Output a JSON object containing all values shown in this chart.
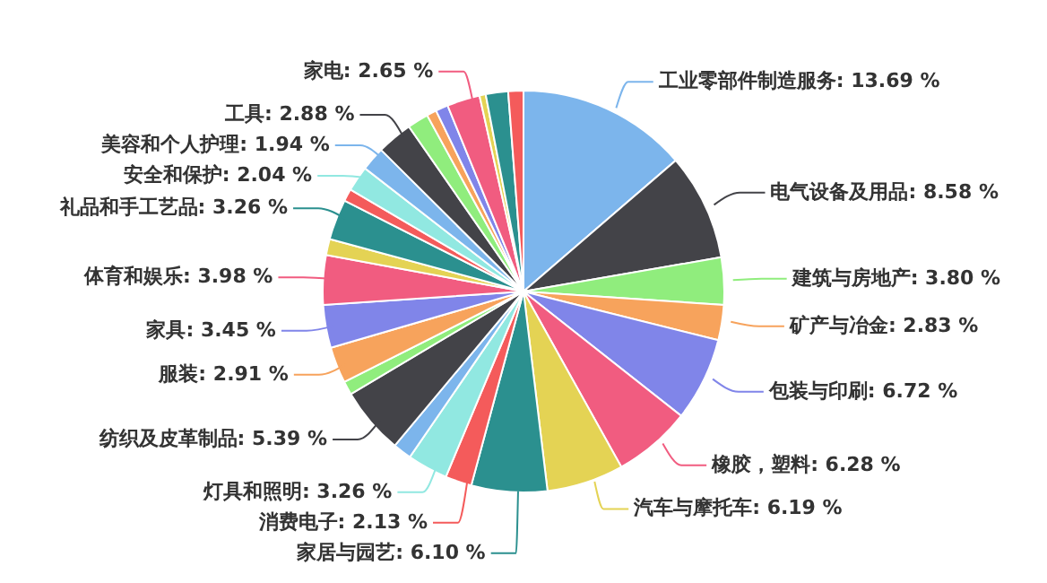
{
  "chart_data": {
    "type": "pie",
    "categories": [
      "工业零部件制造服务",
      "电气设备及用品",
      "建筑与房地产",
      "矿产与冶金",
      "包装与印刷",
      "橡胶，塑料",
      "汽车与摩托车",
      "家居与园艺",
      "消费电子",
      "灯具和照明",
      null,
      "纺织及皮革制品",
      null,
      "服装",
      "家具",
      "体育和娱乐",
      null,
      "礼品和手工艺品",
      null,
      "安全和保护",
      "美容和个人护理",
      "工具",
      null,
      null,
      null,
      "家电",
      null,
      null,
      null
    ],
    "values": [
      13.69,
      8.58,
      3.8,
      2.83,
      6.72,
      6.28,
      6.19,
      6.1,
      2.13,
      3.26,
      1.5,
      5.39,
      1.1,
      2.91,
      3.45,
      3.98,
      1.3,
      3.26,
      1.0,
      2.04,
      1.94,
      2.88,
      1.7,
      0.8,
      1.0,
      2.65,
      0.5,
      1.8,
      1.22
    ],
    "value_labels": [
      "13.69 %",
      "8.58 %",
      "3.80 %",
      "2.83 %",
      "6.72 %",
      "6.28 %",
      "6.19 %",
      "6.10 %",
      "2.13 %",
      "3.26 %",
      null,
      "5.39 %",
      null,
      "2.91 %",
      "3.45 %",
      "3.98 %",
      null,
      "3.26 %",
      null,
      "2.04 %",
      "1.94 %",
      "2.88 %",
      null,
      null,
      null,
      "2.65 %",
      null,
      null,
      null
    ],
    "colors": [
      "#7cb5ec",
      "#434348",
      "#90ed7d",
      "#f7a35c",
      "#8085e9",
      "#f15c80",
      "#e4d354",
      "#2b908f",
      "#f45b5b",
      "#91e8e1",
      "#7cb5ec",
      "#434348",
      "#90ed7d",
      "#f7a35c",
      "#8085e9",
      "#f15c80",
      "#e4d354",
      "#2b908f",
      "#f45b5b",
      "#91e8e1",
      "#7cb5ec",
      "#434348",
      "#90ed7d",
      "#f7a35c",
      "#8085e9",
      "#f15c80",
      "#e4d354",
      "#2b908f",
      "#f45b5b"
    ]
  }
}
